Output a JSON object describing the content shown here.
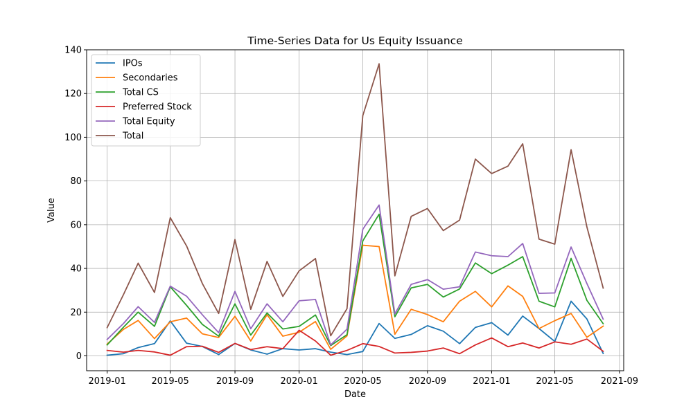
{
  "chart_data": {
    "type": "line",
    "title": "Time-Series Data for Us Equity Issuance",
    "xlabel": "Date",
    "ylabel": "Value",
    "xlim": [
      "2018-11-23",
      "2021-09-09"
    ],
    "ylim": [
      -6.8,
      140
    ],
    "yticks": [
      0,
      20,
      40,
      60,
      80,
      100,
      120,
      140
    ],
    "xticks": [
      "2019-01",
      "2019-05",
      "2019-09",
      "2020-01",
      "2020-05",
      "2020-09",
      "2021-01",
      "2021-05",
      "2021-09"
    ],
    "grid": true,
    "legend_position": "top-left",
    "x": [
      "2019-01",
      "2019-02",
      "2019-03",
      "2019-04",
      "2019-05",
      "2019-06",
      "2019-07",
      "2019-08",
      "2019-09",
      "2019-10",
      "2019-11",
      "2019-12",
      "2020-01",
      "2020-02",
      "2020-03",
      "2020-04",
      "2020-05",
      "2020-06",
      "2020-07",
      "2020-08",
      "2020-09",
      "2020-10",
      "2020-11",
      "2020-12",
      "2021-01",
      "2021-02",
      "2021-03",
      "2021-04",
      "2021-05",
      "2021-06",
      "2021-07",
      "2021-08"
    ],
    "series": [
      {
        "name": "IPOs",
        "color": "#1f77b4",
        "values": [
          0.3,
          1.0,
          3.8,
          5.6,
          16.0,
          5.8,
          4.3,
          0.6,
          5.7,
          2.7,
          0.8,
          3.3,
          2.7,
          3.3,
          1.7,
          0.6,
          2.0,
          14.8,
          8.0,
          9.8,
          13.8,
          11.3,
          5.6,
          13.0,
          15.2,
          9.5,
          18.2,
          12.5,
          6.6,
          25.0,
          16.9,
          1.1
        ]
      },
      {
        "name": "Secondaries",
        "color": "#ff7f0e",
        "values": [
          5.4,
          12.1,
          16.2,
          7.9,
          15.6,
          17.3,
          10.1,
          8.4,
          18.1,
          6.8,
          18.8,
          9.0,
          10.8,
          15.7,
          3.0,
          9.1,
          50.6,
          50.0,
          9.9,
          21.3,
          18.9,
          15.6,
          25.0,
          29.5,
          22.4,
          32.0,
          27.2,
          12.5,
          16.1,
          19.4,
          8.5,
          13.6
        ]
      },
      {
        "name": "Total CS",
        "color": "#2ca02c",
        "values": [
          5.0,
          13.1,
          20.0,
          13.5,
          31.6,
          23.1,
          14.4,
          9.0,
          23.8,
          9.5,
          19.6,
          12.3,
          13.5,
          18.7,
          4.7,
          9.7,
          52.6,
          64.8,
          17.9,
          31.1,
          32.7,
          26.9,
          30.6,
          42.5,
          37.6,
          41.5,
          45.4,
          25.0,
          22.4,
          44.6,
          25.4,
          14.7
        ]
      },
      {
        "name": "Preferred Stock",
        "color": "#d62728",
        "values": [
          2.5,
          1.7,
          2.5,
          1.8,
          0.3,
          4.2,
          4.4,
          1.6,
          5.7,
          2.9,
          4.2,
          3.3,
          11.7,
          6.8,
          0.3,
          2.5,
          5.6,
          4.3,
          1.3,
          1.6,
          2.2,
          3.6,
          1.0,
          5.0,
          8.2,
          4.2,
          5.9,
          3.6,
          6.4,
          5.3,
          7.7,
          2.1
        ]
      },
      {
        "name": "Total Equity",
        "color": "#9467bd",
        "values": [
          7.5,
          14.8,
          22.5,
          15.3,
          31.9,
          27.3,
          18.8,
          10.6,
          29.5,
          12.4,
          23.8,
          15.6,
          25.2,
          25.8,
          5.0,
          12.2,
          57.9,
          69.0,
          19.2,
          32.7,
          34.9,
          30.5,
          31.6,
          47.5,
          45.8,
          45.4,
          51.4,
          28.6,
          28.8,
          49.8,
          33.1,
          16.8
        ]
      },
      {
        "name": "Total",
        "color": "#8c564b",
        "values": [
          12.9,
          28.0,
          42.4,
          29.0,
          63.2,
          50.3,
          33.1,
          19.4,
          53.2,
          21.3,
          43.2,
          27.2,
          38.9,
          44.5,
          9.2,
          21.6,
          109.9,
          133.6,
          36.6,
          63.8,
          67.4,
          57.3,
          62.1,
          90.0,
          83.4,
          86.8,
          97.0,
          53.4,
          51.1,
          94.3,
          59.0,
          31.0
        ]
      }
    ]
  }
}
